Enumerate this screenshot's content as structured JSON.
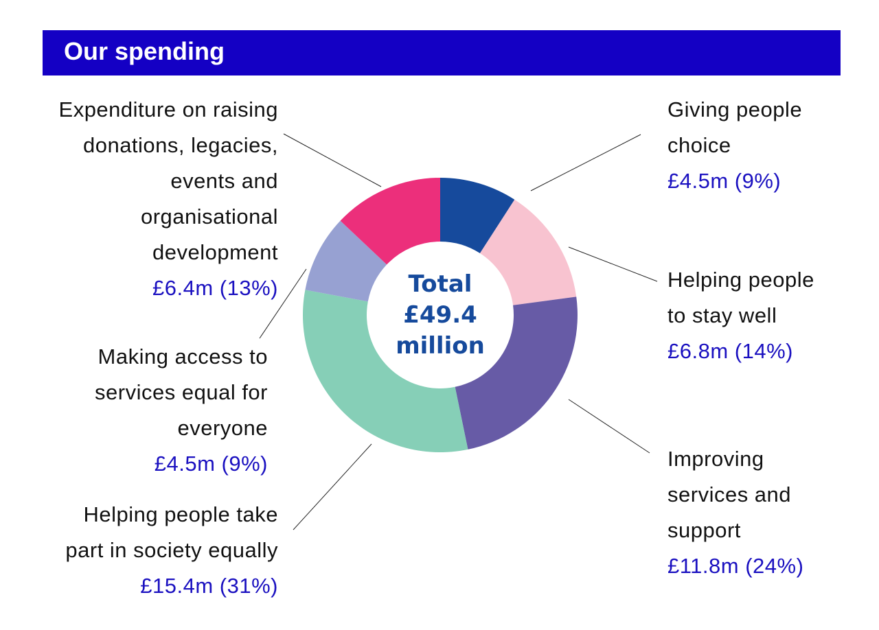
{
  "chart_data": {
    "type": "donut",
    "title": "Our spending",
    "center_label": "Total\n£49.4\nmillion",
    "categories": [
      "Giving people\nchoice",
      "Helping people\nto stay well",
      "Improving\nservices and\nsupport",
      "Helping people take\npart in society equally",
      "Making access to\nservices equal for\neveryone",
      "Expenditure on raising\ndonations, legacies,\nevents and\norganisational\ndevelopment"
    ],
    "values": [
      4.5,
      6.8,
      11.8,
      15.4,
      4.5,
      6.4
    ],
    "value_labels": [
      "£4.5m (9%)",
      "£6.8m (14%)",
      "£11.8m (24%)",
      "£15.4m (31%)",
      "£4.5m (9%)",
      "£6.4m (13%)"
    ],
    "colors": [
      "#164a9c",
      "#f8c3d0",
      "#675ba6",
      "#86cfb7",
      "#97a1d2",
      "#ec2f7b"
    ]
  }
}
